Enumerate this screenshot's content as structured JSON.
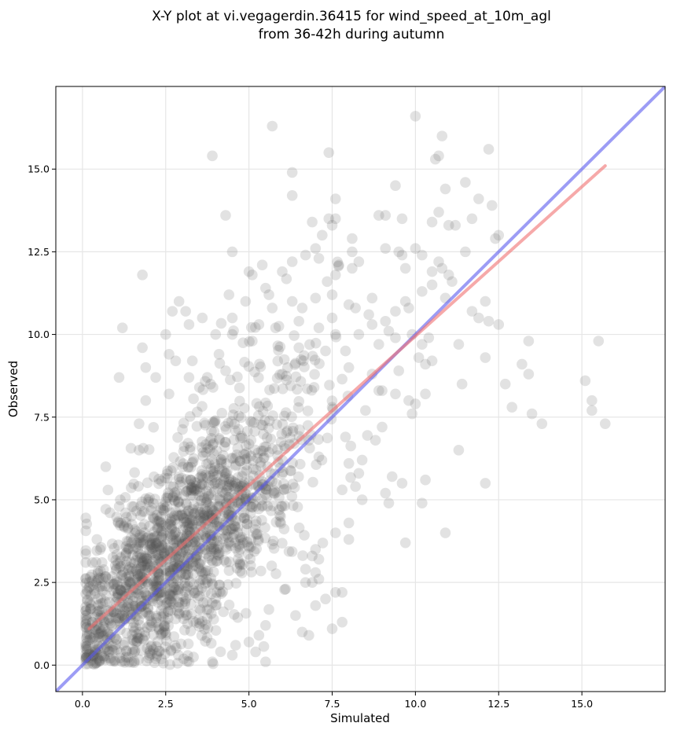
{
  "chart_data": {
    "type": "scatter",
    "title_line1": "X-Y plot at vi.vegagerdin.36415 for wind_speed_at_10m_agl",
    "title_line2": "from 36-42h during autumn",
    "xlabel": "Simulated",
    "ylabel": "Observed",
    "xlim": [
      -0.8,
      17.5
    ],
    "ylim": [
      -0.8,
      17.5
    ],
    "xticks": [
      0.0,
      2.5,
      5.0,
      7.5,
      10.0,
      12.5,
      15.0
    ],
    "yticks": [
      0.0,
      2.5,
      5.0,
      7.5,
      10.0,
      12.5,
      15.0
    ],
    "xtick_labels": [
      "0.0",
      "2.5",
      "5.0",
      "7.5",
      "10.0",
      "12.5",
      "15.0"
    ],
    "ytick_labels": [
      "0.0",
      "2.5",
      "5.0",
      "7.5",
      "10.0",
      "12.5",
      "15.0"
    ],
    "grid": true,
    "point_color": "#555555",
    "lines": [
      {
        "kind": "identity",
        "color": "#5a5aee",
        "x": [
          -0.8,
          17.5
        ],
        "y": [
          -0.8,
          17.5
        ]
      },
      {
        "kind": "regression",
        "color": "#f07070",
        "x": [
          0.2,
          15.7
        ],
        "y": [
          1.1,
          15.1
        ]
      }
    ],
    "highlighted_points": [
      [
        5.7,
        16.3
      ],
      [
        10.0,
        16.6
      ],
      [
        10.8,
        16.0
      ],
      [
        3.9,
        15.4
      ],
      [
        7.4,
        15.5
      ],
      [
        10.7,
        15.4
      ],
      [
        10.6,
        15.3
      ],
      [
        12.2,
        15.6
      ],
      [
        6.3,
        14.9
      ],
      [
        11.5,
        14.6
      ],
      [
        9.4,
        14.5
      ],
      [
        10.9,
        14.4
      ],
      [
        6.3,
        14.2
      ],
      [
        11.9,
        14.1
      ],
      [
        7.6,
        14.1
      ],
      [
        12.3,
        13.9
      ],
      [
        8.9,
        13.6
      ],
      [
        4.3,
        13.6
      ],
      [
        9.1,
        13.6
      ],
      [
        10.7,
        13.7
      ],
      [
        7.4,
        13.5
      ],
      [
        7.6,
        13.5
      ],
      [
        9.6,
        13.5
      ],
      [
        11.7,
        13.5
      ],
      [
        10.5,
        13.4
      ],
      [
        6.9,
        13.4
      ],
      [
        7.5,
        13.3
      ],
      [
        11.0,
        13.3
      ],
      [
        11.2,
        13.3
      ],
      [
        12.5,
        13.0
      ],
      [
        12.4,
        12.9
      ],
      [
        7.2,
        13.0
      ],
      [
        8.1,
        12.9
      ],
      [
        7.0,
        12.6
      ],
      [
        9.1,
        12.6
      ],
      [
        10.0,
        12.6
      ],
      [
        4.5,
        12.5
      ],
      [
        9.5,
        12.5
      ],
      [
        9.6,
        12.4
      ],
      [
        11.5,
        12.5
      ],
      [
        10.2,
        12.4
      ],
      [
        6.7,
        12.4
      ],
      [
        8.1,
        12.5
      ],
      [
        7.1,
        12.3
      ],
      [
        10.7,
        12.2
      ],
      [
        6.3,
        12.2
      ],
      [
        5.4,
        12.1
      ],
      [
        7.7,
        12.1
      ],
      [
        8.3,
        12.2
      ],
      [
        9.7,
        12.0
      ],
      [
        10.8,
        12.0
      ],
      [
        11.0,
        11.8
      ],
      [
        5.0,
        11.9
      ],
      [
        7.6,
        11.8
      ],
      [
        1.8,
        11.8
      ],
      [
        10.5,
        11.9
      ],
      [
        8.1,
        12.0
      ],
      [
        5.1,
        11.8
      ],
      [
        6.0,
        11.9
      ],
      [
        11.1,
        11.6
      ],
      [
        5.5,
        11.4
      ],
      [
        10.5,
        11.5
      ],
      [
        5.6,
        11.2
      ],
      [
        4.4,
        11.2
      ],
      [
        7.5,
        11.2
      ],
      [
        8.7,
        11.1
      ],
      [
        10.2,
        11.3
      ],
      [
        12.1,
        11.0
      ],
      [
        6.3,
        11.0
      ],
      [
        7.0,
        11.1
      ],
      [
        2.9,
        11.0
      ],
      [
        4.9,
        11.0
      ],
      [
        9.7,
        11.0
      ],
      [
        9.8,
        10.8
      ],
      [
        8.0,
        10.9
      ],
      [
        10.9,
        11.1
      ],
      [
        6.6,
        10.8
      ],
      [
        8.2,
        10.8
      ],
      [
        5.7,
        10.8
      ],
      [
        3.1,
        10.7
      ],
      [
        2.7,
        10.7
      ],
      [
        9.4,
        10.7
      ],
      [
        11.7,
        10.7
      ],
      [
        8.6,
        10.6
      ],
      [
        7.5,
        10.5
      ],
      [
        3.6,
        10.5
      ],
      [
        11.9,
        10.5
      ],
      [
        4.5,
        10.5
      ],
      [
        12.2,
        10.4
      ],
      [
        6.5,
        10.4
      ],
      [
        9.1,
        10.4
      ],
      [
        12.5,
        10.3
      ],
      [
        7.1,
        10.2
      ],
      [
        3.2,
        10.3
      ],
      [
        5.3,
        10.3
      ],
      [
        1.2,
        10.2
      ],
      [
        5.8,
        10.2
      ],
      [
        8.7,
        10.3
      ],
      [
        9.2,
        10.1
      ],
      [
        9.9,
        10.0
      ],
      [
        2.5,
        10.0
      ],
      [
        4.0,
        10.0
      ],
      [
        4.5,
        10.0
      ],
      [
        8.3,
        10.0
      ],
      [
        7.6,
        10.0
      ],
      [
        10.4,
        9.9
      ],
      [
        10.2,
        9.7
      ],
      [
        11.3,
        9.7
      ],
      [
        9.4,
        9.9
      ],
      [
        13.4,
        9.8
      ],
      [
        5.1,
        9.8
      ],
      [
        15.5,
        9.8
      ],
      [
        6.5,
        9.6
      ],
      [
        7.3,
        9.5
      ],
      [
        8.9,
        9.7
      ],
      [
        7.9,
        9.5
      ],
      [
        1.8,
        9.6
      ],
      [
        2.6,
        9.4
      ],
      [
        4.1,
        9.4
      ],
      [
        10.1,
        9.3
      ],
      [
        10.5,
        9.2
      ],
      [
        12.1,
        9.3
      ],
      [
        10.3,
        9.1
      ],
      [
        13.2,
        9.1
      ],
      [
        3.3,
        9.2
      ],
      [
        2.8,
        9.2
      ],
      [
        8.0,
        9.0
      ],
      [
        1.9,
        9.0
      ],
      [
        4.3,
        8.9
      ],
      [
        9.5,
        8.9
      ],
      [
        13.4,
        8.8
      ],
      [
        8.7,
        8.8
      ],
      [
        6.0,
        8.8
      ],
      [
        3.2,
        8.7
      ],
      [
        1.1,
        8.7
      ],
      [
        2.2,
        8.7
      ],
      [
        11.4,
        8.5
      ],
      [
        12.7,
        8.5
      ],
      [
        15.1,
        8.6
      ],
      [
        8.9,
        8.3
      ],
      [
        9.0,
        8.3
      ],
      [
        10.3,
        8.2
      ],
      [
        9.4,
        8.2
      ],
      [
        15.3,
        8.0
      ],
      [
        2.6,
        8.2
      ],
      [
        1.9,
        8.0
      ],
      [
        9.8,
        8.0
      ],
      [
        12.9,
        7.8
      ],
      [
        10.0,
        7.9
      ],
      [
        7.5,
        7.8
      ],
      [
        8.5,
        7.7
      ],
      [
        15.3,
        7.7
      ],
      [
        13.5,
        7.6
      ],
      [
        9.9,
        7.6
      ],
      [
        13.8,
        7.3
      ],
      [
        15.7,
        7.3
      ],
      [
        9.0,
        7.2
      ],
      [
        1.7,
        7.3
      ],
      [
        6.8,
        6.8
      ],
      [
        7.9,
        6.9
      ],
      [
        8.8,
        6.8
      ],
      [
        11.3,
        6.5
      ],
      [
        1.7,
        6.5
      ],
      [
        7.1,
        6.3
      ],
      [
        8.4,
        6.2
      ],
      [
        0.7,
        6.0
      ],
      [
        8.0,
        6.1
      ],
      [
        9.3,
        5.7
      ],
      [
        9.6,
        5.5
      ],
      [
        12.1,
        5.5
      ],
      [
        10.3,
        5.6
      ],
      [
        8.3,
        5.8
      ],
      [
        8.2,
        5.4
      ],
      [
        9.1,
        5.2
      ],
      [
        7.8,
        5.3
      ],
      [
        8.4,
        5.0
      ],
      [
        10.2,
        4.9
      ],
      [
        9.2,
        4.9
      ],
      [
        8.0,
        4.3
      ],
      [
        10.9,
        4.0
      ],
      [
        7.6,
        4.0
      ],
      [
        8.0,
        3.8
      ],
      [
        9.7,
        3.7
      ],
      [
        7.0,
        3.5
      ],
      [
        6.9,
        3.3
      ],
      [
        7.1,
        3.2
      ],
      [
        6.7,
        2.9
      ],
      [
        7.0,
        2.8
      ],
      [
        6.9,
        2.5
      ],
      [
        7.1,
        2.6
      ],
      [
        7.8,
        2.2
      ],
      [
        7.3,
        2.0
      ],
      [
        7.6,
        2.2
      ],
      [
        6.1,
        2.3
      ],
      [
        6.7,
        2.5
      ],
      [
        7.0,
        1.8
      ],
      [
        7.5,
        1.1
      ],
      [
        7.8,
        1.3
      ],
      [
        6.6,
        1.0
      ],
      [
        5.5,
        1.2
      ],
      [
        5.3,
        0.9
      ],
      [
        6.4,
        1.5
      ],
      [
        5.5,
        0.1
      ],
      [
        3.9,
        0.1
      ],
      [
        4.6,
        0.6
      ],
      [
        5.2,
        0.4
      ],
      [
        6.8,
        0.9
      ],
      [
        5.0,
        0.7
      ],
      [
        4.5,
        0.3
      ],
      [
        3.2,
        0.1
      ]
    ],
    "scatter_params": {
      "n": 1650,
      "seed": 42,
      "slope": 0.9,
      "intercept": 0.95,
      "noise_sd": 1.2
    }
  }
}
